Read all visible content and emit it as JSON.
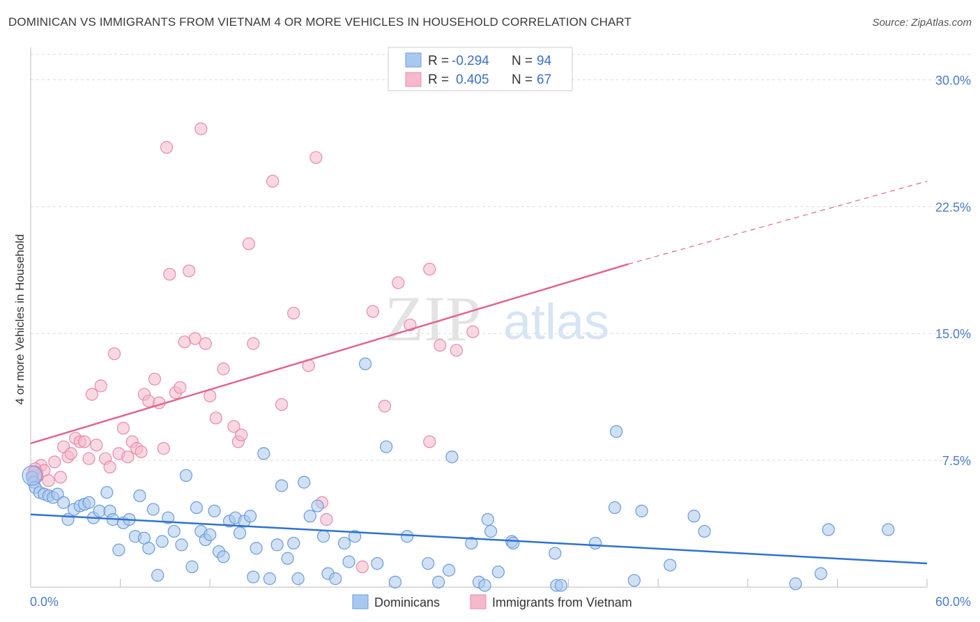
{
  "header": {
    "title": "DOMINICAN VS IMMIGRANTS FROM VIETNAM 4 OR MORE VEHICLES IN HOUSEHOLD CORRELATION CHART",
    "source": "Source: ZipAtlas.com"
  },
  "watermark": {
    "zip": "ZIP",
    "atlas": "atlas"
  },
  "legend": {
    "rows": [
      {
        "r_label": "R =",
        "r_value": "-0.294",
        "n_label": "N =",
        "n_value": "94"
      },
      {
        "r_label": "R =",
        "r_value": "0.405",
        "n_label": "N =",
        "n_value": "67"
      }
    ]
  },
  "bottom_legend": {
    "series1": "Dominicans",
    "series2": "Immigrants from Vietnam"
  },
  "colors": {
    "blue_fill": "#a9c8ef",
    "blue_stroke": "#6a9bdc",
    "blue_line": "#2f72d0",
    "pink_fill": "#f6b8cb",
    "pink_stroke": "#e88aa8",
    "pink_line": "#e0668f",
    "grid": "#d9d9d9",
    "tick_text": "#4a7cc7"
  },
  "chart_data": {
    "type": "scatter",
    "title": "DOMINICAN VS IMMIGRANTS FROM VIETNAM 4 OR MORE VEHICLES IN HOUSEHOLD CORRELATION CHART",
    "xlabel": "",
    "ylabel": "4 or more Vehicles in Household",
    "xlim": [
      0,
      60
    ],
    "ylim": [
      0,
      31.5
    ],
    "x_tick_labels": [
      "0.0%",
      "60.0%"
    ],
    "y_ticks": [
      7.5,
      15.0,
      22.5,
      30.0
    ],
    "y_tick_labels": [
      "7.5%",
      "15.0%",
      "22.5%",
      "30.0%"
    ],
    "grid": true,
    "legend_position": "top-center",
    "series": [
      {
        "name": "Dominicans",
        "r": -0.294,
        "n": 94,
        "trend": {
          "x": [
            0,
            60
          ],
          "y": [
            4.3,
            1.4
          ],
          "style": "solid"
        },
        "points": [
          [
            0.1,
            6.5
          ],
          [
            0.2,
            6.2
          ],
          [
            0.3,
            5.9
          ],
          [
            0.6,
            5.6
          ],
          [
            0.9,
            5.5
          ],
          [
            1.2,
            5.4
          ],
          [
            1.5,
            5.3
          ],
          [
            1.8,
            5.5
          ],
          [
            2.2,
            5.0
          ],
          [
            2.5,
            4.0
          ],
          [
            2.9,
            4.6
          ],
          [
            3.3,
            4.8
          ],
          [
            3.6,
            4.9
          ],
          [
            3.9,
            5.0
          ],
          [
            4.2,
            4.1
          ],
          [
            4.6,
            4.5
          ],
          [
            5.1,
            5.6
          ],
          [
            5.3,
            4.5
          ],
          [
            5.5,
            4.0
          ],
          [
            5.9,
            2.2
          ],
          [
            6.2,
            3.8
          ],
          [
            6.6,
            4.0
          ],
          [
            7.0,
            3.0
          ],
          [
            7.3,
            5.4
          ],
          [
            7.6,
            2.9
          ],
          [
            7.9,
            2.3
          ],
          [
            8.2,
            4.6
          ],
          [
            8.5,
            0.7
          ],
          [
            8.8,
            2.7
          ],
          [
            9.2,
            4.1
          ],
          [
            9.6,
            3.3
          ],
          [
            10.1,
            2.5
          ],
          [
            10.4,
            6.6
          ],
          [
            10.8,
            1.2
          ],
          [
            11.1,
            4.7
          ],
          [
            11.4,
            3.3
          ],
          [
            11.7,
            2.8
          ],
          [
            12.0,
            3.1
          ],
          [
            12.3,
            4.5
          ],
          [
            12.6,
            2.1
          ],
          [
            12.9,
            1.8
          ],
          [
            13.3,
            3.9
          ],
          [
            13.7,
            4.1
          ],
          [
            14.0,
            3.2
          ],
          [
            14.3,
            3.9
          ],
          [
            14.7,
            4.2
          ],
          [
            14.9,
            0.6
          ],
          [
            15.1,
            2.3
          ],
          [
            15.6,
            7.9
          ],
          [
            16.0,
            0.5
          ],
          [
            16.5,
            2.5
          ],
          [
            16.8,
            6.0
          ],
          [
            17.2,
            1.7
          ],
          [
            17.6,
            2.6
          ],
          [
            17.9,
            0.5
          ],
          [
            18.3,
            6.2
          ],
          [
            18.7,
            4.2
          ],
          [
            19.2,
            4.8
          ],
          [
            19.6,
            3.0
          ],
          [
            19.9,
            0.8
          ],
          [
            20.4,
            0.5
          ],
          [
            21.0,
            2.6
          ],
          [
            21.3,
            1.5
          ],
          [
            21.7,
            3.0
          ],
          [
            22.4,
            13.2
          ],
          [
            23.2,
            1.4
          ],
          [
            23.8,
            8.3
          ],
          [
            24.4,
            0.3
          ],
          [
            25.2,
            3.0
          ],
          [
            26.6,
            1.4
          ],
          [
            27.3,
            0.3
          ],
          [
            28.0,
            1.0
          ],
          [
            28.2,
            7.7
          ],
          [
            29.5,
            2.6
          ],
          [
            30.0,
            0.3
          ],
          [
            30.4,
            0.1
          ],
          [
            30.6,
            4.0
          ],
          [
            30.8,
            3.3
          ],
          [
            31.3,
            0.9
          ],
          [
            32.2,
            2.7
          ],
          [
            32.3,
            2.6
          ],
          [
            35.1,
            2.0
          ],
          [
            35.2,
            0.1
          ],
          [
            35.5,
            0.1
          ],
          [
            37.8,
            2.6
          ],
          [
            39.2,
            9.2
          ],
          [
            39.1,
            4.7
          ],
          [
            40.4,
            0.4
          ],
          [
            40.9,
            4.5
          ],
          [
            42.8,
            1.3
          ],
          [
            44.4,
            4.2
          ],
          [
            45.1,
            3.3
          ],
          [
            51.2,
            0.2
          ],
          [
            52.9,
            0.8
          ],
          [
            53.4,
            3.4
          ],
          [
            57.4,
            3.4
          ]
        ]
      },
      {
        "name": "Immigrants from Vietnam",
        "r": 0.405,
        "n": 67,
        "trend": {
          "x": [
            0,
            40
          ],
          "y": [
            8.5,
            19.1
          ],
          "style": "solid",
          "extension": {
            "x": [
              40,
              60
            ],
            "y": [
              19.1,
              24.0
            ],
            "style": "dashed"
          }
        },
        "points": [
          [
            0.2,
            6.8
          ],
          [
            0.4,
            6.5
          ],
          [
            0.7,
            7.2
          ],
          [
            0.9,
            6.9
          ],
          [
            1.2,
            6.3
          ],
          [
            1.6,
            7.4
          ],
          [
            2.0,
            6.5
          ],
          [
            2.2,
            8.3
          ],
          [
            2.5,
            7.7
          ],
          [
            2.7,
            7.9
          ],
          [
            3.0,
            8.8
          ],
          [
            3.3,
            8.6
          ],
          [
            3.6,
            8.6
          ],
          [
            3.9,
            7.6
          ],
          [
            4.1,
            11.4
          ],
          [
            4.4,
            8.4
          ],
          [
            4.7,
            11.9
          ],
          [
            5.0,
            7.6
          ],
          [
            5.3,
            7.1
          ],
          [
            5.6,
            13.8
          ],
          [
            5.9,
            7.9
          ],
          [
            6.2,
            9.4
          ],
          [
            6.5,
            7.7
          ],
          [
            6.8,
            8.6
          ],
          [
            7.1,
            8.2
          ],
          [
            7.4,
            8.0
          ],
          [
            7.6,
            11.4
          ],
          [
            7.9,
            11.0
          ],
          [
            8.3,
            12.3
          ],
          [
            8.6,
            10.9
          ],
          [
            8.9,
            8.2
          ],
          [
            9.1,
            26.0
          ],
          [
            9.3,
            18.5
          ],
          [
            9.7,
            11.5
          ],
          [
            10.0,
            11.8
          ],
          [
            10.3,
            14.5
          ],
          [
            10.6,
            18.7
          ],
          [
            11.0,
            14.7
          ],
          [
            11.4,
            27.1
          ],
          [
            11.7,
            14.4
          ],
          [
            12.0,
            11.3
          ],
          [
            12.4,
            10.0
          ],
          [
            12.9,
            12.9
          ],
          [
            13.6,
            9.5
          ],
          [
            13.9,
            8.6
          ],
          [
            14.1,
            9.0
          ],
          [
            14.6,
            20.3
          ],
          [
            14.9,
            14.4
          ],
          [
            16.2,
            24.0
          ],
          [
            16.8,
            10.8
          ],
          [
            17.6,
            16.2
          ],
          [
            18.6,
            13.1
          ],
          [
            19.1,
            25.4
          ],
          [
            19.5,
            5.0
          ],
          [
            19.8,
            4.0
          ],
          [
            22.2,
            1.2
          ],
          [
            22.9,
            16.3
          ],
          [
            23.7,
            10.7
          ],
          [
            24.6,
            18.0
          ],
          [
            25.4,
            15.5
          ],
          [
            26.7,
            18.8
          ],
          [
            26.7,
            8.6
          ],
          [
            27.4,
            14.3
          ],
          [
            28.5,
            14.0
          ],
          [
            29.6,
            15.1
          ],
          [
            0.1,
            6.6
          ],
          [
            0.3,
            7.0
          ]
        ]
      }
    ]
  }
}
